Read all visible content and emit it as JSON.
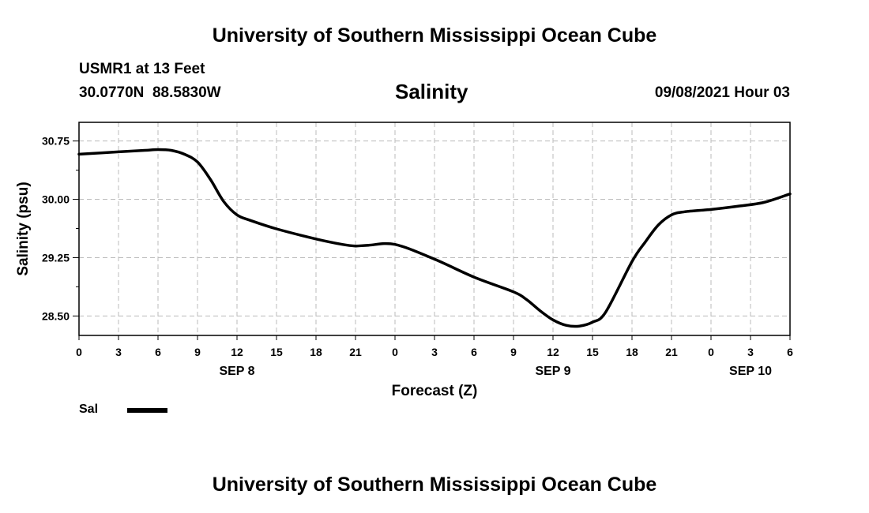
{
  "header": {
    "title": "University of Southern Mississippi Ocean Cube",
    "station": "USMR1 at 13 Feet",
    "coordinates": "30.0770N  88.5830W",
    "variable": "Salinity",
    "forecast_time": "09/08/2021 Hour 03"
  },
  "footer": {
    "title": "University of Southern Mississippi Ocean Cube"
  },
  "legend": {
    "label": "Sal",
    "color": "#000000"
  },
  "chart_data": {
    "type": "line",
    "title": "Salinity",
    "xlabel": "Forecast (Z)",
    "ylabel": "Salinity (psu)",
    "xlim": [
      0,
      54
    ],
    "ylim": [
      28.25,
      30.99
    ],
    "yticks": [
      28.5,
      29.25,
      30.0,
      30.75
    ],
    "ytick_labels": [
      "28.50",
      "29.25",
      "30.00",
      "30.75"
    ],
    "xticks": [
      0,
      3,
      6,
      9,
      12,
      15,
      18,
      21,
      24,
      27,
      30,
      33,
      36,
      39,
      42,
      45,
      48,
      51,
      54
    ],
    "xtick_labels": [
      "0",
      "3",
      "6",
      "9",
      "12",
      "15",
      "18",
      "21",
      "0",
      "3",
      "6",
      "9",
      "12",
      "15",
      "18",
      "21",
      "0",
      "3",
      "6"
    ],
    "day_labels": [
      {
        "x": 12,
        "label": "SEP 8"
      },
      {
        "x": 36,
        "label": "SEP 9"
      },
      {
        "x": 51,
        "label": "SEP 10"
      }
    ],
    "grid": true,
    "series": [
      {
        "name": "Sal",
        "color": "#000000",
        "x": [
          0,
          3,
          5,
          6,
          7,
          8,
          9,
          10,
          11,
          12,
          13,
          15,
          18,
          20,
          21,
          22,
          24,
          27,
          30,
          33,
          34,
          35,
          36,
          37,
          38,
          39,
          40,
          42,
          43,
          44,
          45,
          46,
          48,
          50,
          52,
          54
        ],
        "y": [
          30.58,
          30.61,
          30.63,
          30.64,
          30.63,
          30.58,
          30.48,
          30.25,
          29.97,
          29.8,
          29.73,
          29.62,
          29.49,
          29.42,
          29.4,
          29.41,
          29.42,
          29.23,
          29.0,
          28.81,
          28.71,
          28.57,
          28.45,
          28.38,
          28.37,
          28.42,
          28.55,
          29.2,
          29.45,
          29.67,
          29.8,
          29.84,
          29.87,
          29.91,
          29.96,
          30.07
        ]
      }
    ]
  }
}
